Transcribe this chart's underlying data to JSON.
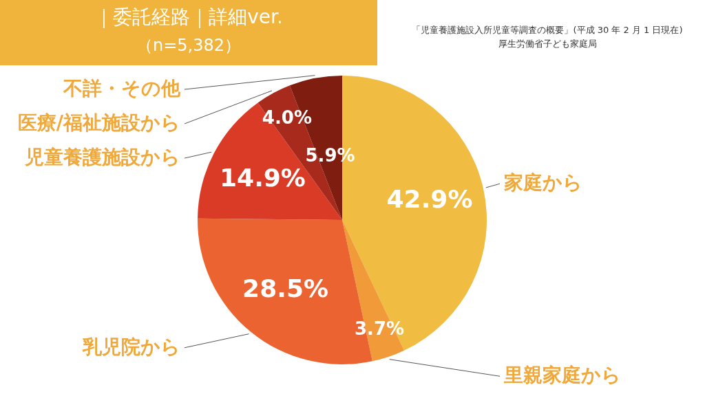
{
  "chart_data": {
    "type": "pie",
    "title": "｜委託経路｜詳細ver.",
    "subtitle": "（n=5,382）",
    "annotations": [
      "「児童養護施設入所児童等調査の概要」(平成 30 年 2 月 1 日現在)",
      "厚生労働省子ども家庭局"
    ],
    "categories": [
      "家庭から",
      "里親家庭から",
      "乳児院から",
      "児童養護施設から",
      "医療/福祉施設から",
      "不詳・その他"
    ],
    "values": [
      42.9,
      3.7,
      28.5,
      14.9,
      4.0,
      5.9
    ],
    "colors": [
      "#f0bc41",
      "#f09a3a",
      "#ea6330",
      "#d93b27",
      "#a82a1c",
      "#7e1d10"
    ],
    "value_labels": [
      "42.9%",
      "3.7%",
      "28.5%",
      "14.9%",
      "4.0%",
      "5.9%"
    ]
  }
}
